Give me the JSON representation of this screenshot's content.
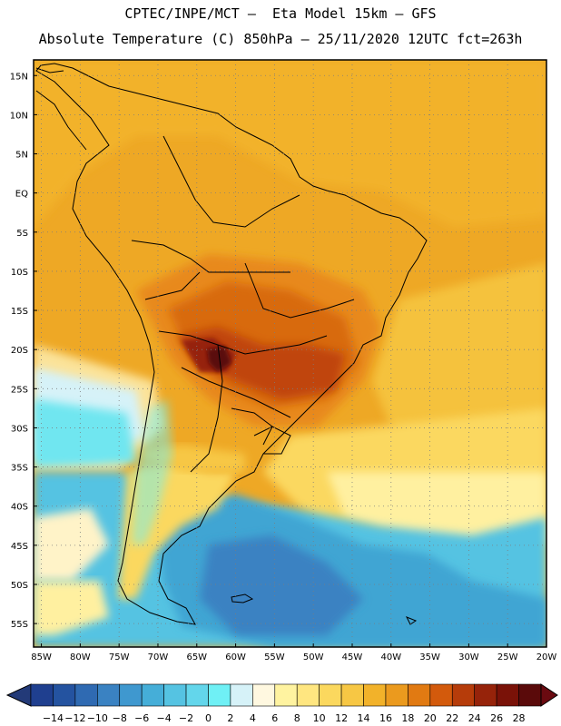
{
  "title_line1": "CPTEC/INPE/MCT –  Eta Model 15km – GFS",
  "title_line2": "Absolute Temperature (C) 850hPa – 25/11/2020 12UTC fct=263h",
  "map": {
    "lat_labels": [
      "15N",
      "10N",
      "5N",
      "EQ",
      "5S",
      "10S",
      "15S",
      "20S",
      "25S",
      "30S",
      "35S",
      "40S",
      "45S",
      "50S",
      "55S"
    ],
    "lat_values": [
      15,
      10,
      5,
      0,
      -5,
      -10,
      -15,
      -20,
      -25,
      -30,
      -35,
      -40,
      -45,
      -50,
      -55
    ],
    "lon_labels": [
      "85W",
      "80W",
      "75W",
      "70W",
      "65W",
      "60W",
      "55W",
      "50W",
      "45W",
      "40W",
      "35W",
      "30W",
      "25W",
      "20W"
    ],
    "lon_values": [
      -85,
      -80,
      -75,
      -70,
      -65,
      -60,
      -55,
      -50,
      -45,
      -40,
      -35,
      -30,
      -25,
      -20
    ],
    "lon_range": [
      -86,
      -20
    ],
    "lat_range": [
      -58,
      17
    ]
  },
  "colorbar": {
    "labels": [
      "-14",
      "-12",
      "-10",
      "-8",
      "-6",
      "-4",
      "-2",
      "0",
      "2",
      "4",
      "6",
      "8",
      "10",
      "12",
      "14",
      "16",
      "18",
      "20",
      "22",
      "24",
      "26",
      "28"
    ],
    "colors": [
      "#1f3f8f",
      "#2453a0",
      "#2f6ab2",
      "#3a82c2",
      "#3f98cf",
      "#45aed8",
      "#55c3e2",
      "#63d6eb",
      "#6ff0f5",
      "#d6f2f8",
      "#fff8e0",
      "#fff3a0",
      "#ffe680",
      "#fbd85e",
      "#f7c744",
      "#f2b22a",
      "#eb9a1e",
      "#e17a12",
      "#d35a0c",
      "#b63c0a",
      "#96230a",
      "#7a1208",
      "#5a0a0a"
    ],
    "left_arrow_color": "#233a78",
    "right_arrow_color": "#6a0a10"
  }
}
